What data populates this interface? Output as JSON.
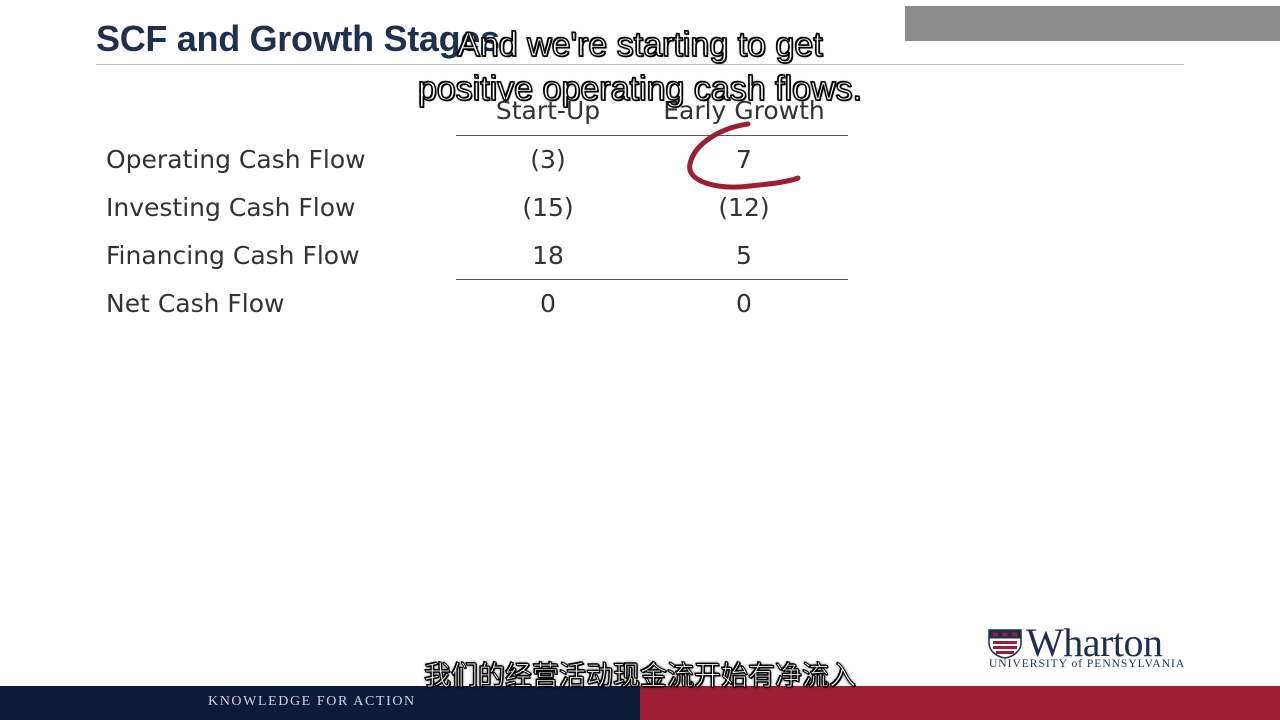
{
  "slide": {
    "title": "SCF and Growth Stages",
    "footer_text": "KNOWLEDGE FOR ACTION"
  },
  "captions": {
    "english_line1": "And we're starting to get",
    "english_line2": "positive operating cash flows.",
    "chinese": "我们的经营活动现金流开始有净流入"
  },
  "table": {
    "columns": [
      "Start-Up",
      "Early Growth"
    ],
    "rows": [
      {
        "label": "Operating Cash Flow",
        "values": [
          "(3)",
          "7"
        ]
      },
      {
        "label": "Investing Cash Flow",
        "values": [
          "(15)",
          "(12)"
        ]
      },
      {
        "label": "Financing Cash Flow",
        "values": [
          "18",
          "5"
        ]
      },
      {
        "label": "Net Cash Flow",
        "values": [
          "0",
          "0"
        ]
      }
    ]
  },
  "logo": {
    "name": "Wharton",
    "subtitle": "UNIVERSITY of PENNSYLVANIA",
    "icon": "penn-shield-icon"
  },
  "colors": {
    "title": "#1f2f4f",
    "footer_navy": "#0e1a39",
    "footer_red": "#9b1e33",
    "highlight": "#9b1e33"
  }
}
